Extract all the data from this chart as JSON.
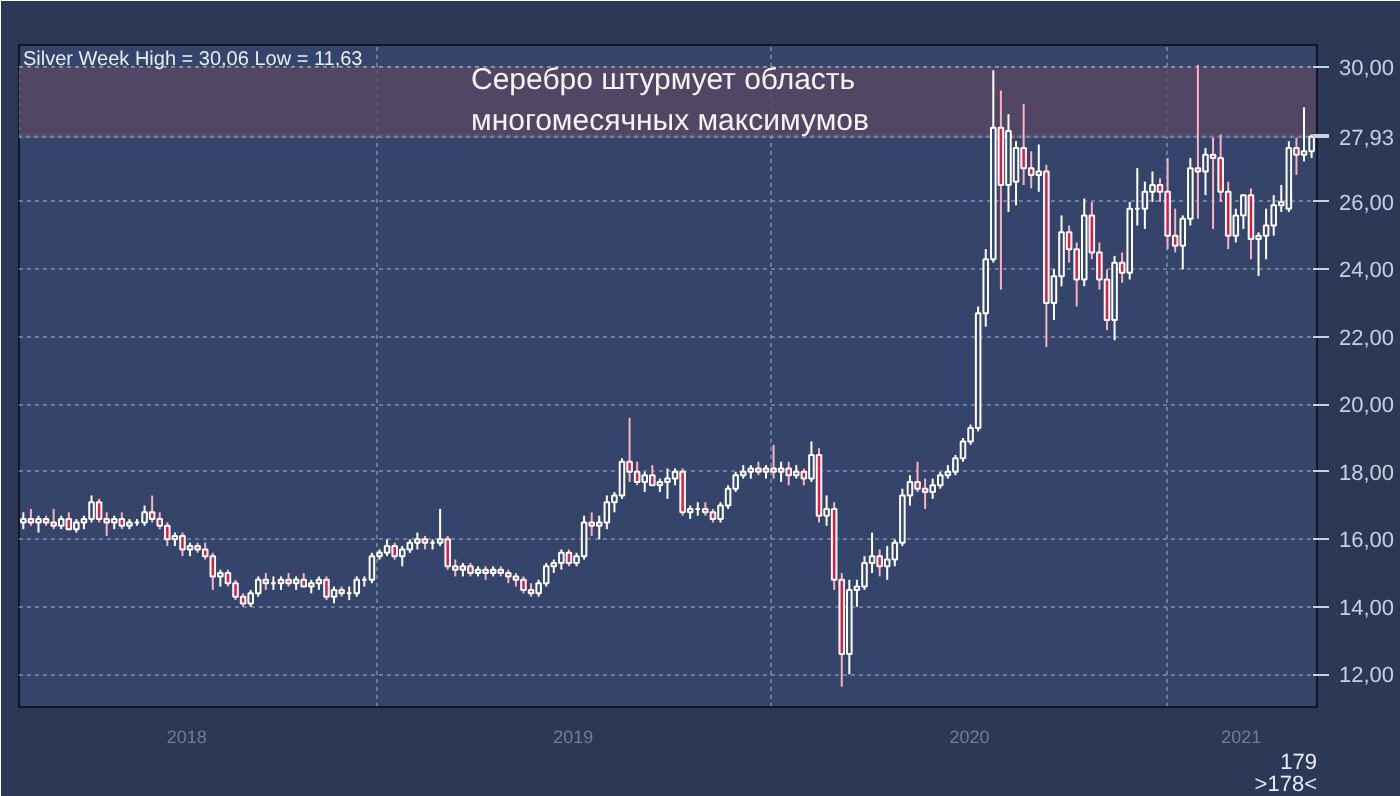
{
  "chart_data": {
    "type": "candlestick",
    "title": "Silver Week High = 30,06 Low = 11,63",
    "annotations": [
      "Серебро штурмует область\nмногомесячных максимумов",
      "179",
      ">178<"
    ],
    "x": [
      "2018-02-09",
      "2018-02-16",
      "2018-02-23",
      "2018-03-02",
      "2018-03-09",
      "2018-03-16",
      "2018-03-23",
      "2018-03-30",
      "2018-04-06",
      "2018-04-13",
      "2018-04-20",
      "2018-04-27",
      "2018-05-04",
      "2018-05-11",
      "2018-05-18",
      "2018-05-25",
      "2018-06-01",
      "2018-06-08",
      "2018-06-15",
      "2018-06-22",
      "2018-06-29",
      "2018-07-06",
      "2018-07-13",
      "2018-07-20",
      "2018-07-27",
      "2018-08-03",
      "2018-08-10",
      "2018-08-17",
      "2018-08-24",
      "2018-08-31",
      "2018-09-07",
      "2018-09-14",
      "2018-09-21",
      "2018-09-28",
      "2018-10-05",
      "2018-10-12",
      "2018-10-19",
      "2018-10-26",
      "2018-11-02",
      "2018-11-09",
      "2018-11-16",
      "2018-11-23",
      "2018-11-30",
      "2018-12-07",
      "2018-12-14",
      "2018-12-21",
      "2018-12-28",
      "2019-01-04",
      "2019-01-11",
      "2019-01-18",
      "2019-01-25",
      "2019-02-01",
      "2019-02-08",
      "2019-02-15",
      "2019-02-22",
      "2019-03-01",
      "2019-03-08",
      "2019-03-15",
      "2019-03-22",
      "2019-03-29",
      "2019-04-05",
      "2019-04-12",
      "2019-04-19",
      "2019-04-26",
      "2019-05-03",
      "2019-05-10",
      "2019-05-17",
      "2019-05-24",
      "2019-05-31",
      "2019-06-07",
      "2019-06-14",
      "2019-06-21",
      "2019-06-28",
      "2019-07-05",
      "2019-07-12",
      "2019-07-19",
      "2019-07-26",
      "2019-08-02",
      "2019-08-09",
      "2019-08-16",
      "2019-08-23",
      "2019-08-30",
      "2019-09-06",
      "2019-09-13",
      "2019-09-20",
      "2019-09-27",
      "2019-10-04",
      "2019-10-11",
      "2019-10-18",
      "2019-10-25",
      "2019-11-01",
      "2019-11-08",
      "2019-11-15",
      "2019-11-22",
      "2019-11-29",
      "2019-12-06",
      "2019-12-13",
      "2019-12-20",
      "2019-12-27",
      "2020-01-03",
      "2020-01-10",
      "2020-01-17",
      "2020-01-24",
      "2020-01-31",
      "2020-02-07",
      "2020-02-14",
      "2020-02-21",
      "2020-02-28",
      "2020-03-06",
      "2020-03-13",
      "2020-03-20",
      "2020-03-27",
      "2020-04-03",
      "2020-04-10",
      "2020-04-17",
      "2020-04-24",
      "2020-05-01",
      "2020-05-08",
      "2020-05-15",
      "2020-05-22",
      "2020-05-29",
      "2020-06-05",
      "2020-06-12",
      "2020-06-19",
      "2020-06-26",
      "2020-07-03",
      "2020-07-10",
      "2020-07-17",
      "2020-07-24",
      "2020-07-31",
      "2020-08-07",
      "2020-08-14",
      "2020-08-21",
      "2020-08-28",
      "2020-09-04",
      "2020-09-11",
      "2020-09-18",
      "2020-09-25",
      "2020-10-02",
      "2020-10-09",
      "2020-10-16",
      "2020-10-23",
      "2020-10-30",
      "2020-11-06",
      "2020-11-13",
      "2020-11-20",
      "2020-11-27",
      "2020-12-04",
      "2020-12-11",
      "2020-12-18",
      "2020-12-25",
      "2021-01-01",
      "2021-01-08",
      "2021-01-15",
      "2021-01-22",
      "2021-01-29",
      "2021-02-05",
      "2021-02-12",
      "2021-02-19",
      "2021-02-26",
      "2021-03-05",
      "2021-03-12",
      "2021-03-19",
      "2021-03-26",
      "2021-04-02",
      "2021-04-09",
      "2021-04-16",
      "2021-04-23",
      "2021-04-30",
      "2021-05-07",
      "2021-05-14"
    ],
    "ohlc": [
      [
        16.5,
        16.8,
        16.3,
        16.6
      ],
      [
        16.6,
        16.9,
        16.4,
        16.5
      ],
      [
        16.5,
        16.7,
        16.2,
        16.6
      ],
      [
        16.6,
        16.7,
        16.4,
        16.5
      ],
      [
        16.5,
        16.9,
        16.3,
        16.4
      ],
      [
        16.4,
        16.7,
        16.3,
        16.6
      ],
      [
        16.6,
        16.8,
        16.3,
        16.3
      ],
      [
        16.3,
        16.6,
        16.2,
        16.5
      ],
      [
        16.5,
        16.7,
        16.3,
        16.6
      ],
      [
        16.6,
        17.3,
        16.5,
        17.1
      ],
      [
        17.1,
        17.2,
        16.5,
        16.6
      ],
      [
        16.6,
        16.8,
        16.1,
        16.5
      ],
      [
        16.5,
        16.7,
        16.3,
        16.6
      ],
      [
        16.6,
        16.8,
        16.3,
        16.4
      ],
      [
        16.4,
        16.6,
        16.3,
        16.5
      ],
      [
        16.5,
        16.6,
        16.4,
        16.5
      ],
      [
        16.5,
        17.0,
        16.4,
        16.8
      ],
      [
        16.8,
        17.3,
        16.5,
        16.6
      ],
      [
        16.6,
        16.8,
        16.3,
        16.4
      ],
      [
        16.4,
        16.5,
        15.8,
        16.0
      ],
      [
        16.0,
        16.2,
        15.8,
        16.1
      ],
      [
        16.1,
        16.2,
        15.5,
        15.7
      ],
      [
        15.7,
        15.9,
        15.5,
        15.8
      ],
      [
        15.8,
        15.9,
        15.6,
        15.7
      ],
      [
        15.7,
        15.9,
        15.4,
        15.5
      ],
      [
        15.5,
        15.6,
        14.5,
        14.9
      ],
      [
        14.9,
        15.1,
        14.6,
        15.0
      ],
      [
        15.0,
        15.1,
        14.6,
        14.7
      ],
      [
        14.7,
        14.8,
        14.2,
        14.3
      ],
      [
        14.3,
        14.4,
        14.0,
        14.1
      ],
      [
        14.1,
        14.5,
        14.0,
        14.4
      ],
      [
        14.4,
        14.9,
        14.3,
        14.8
      ],
      [
        14.8,
        15.0,
        14.5,
        14.7
      ],
      [
        14.7,
        14.9,
        14.5,
        14.7
      ],
      [
        14.7,
        14.9,
        14.5,
        14.8
      ],
      [
        14.8,
        15.0,
        14.6,
        14.7
      ],
      [
        14.7,
        14.9,
        14.5,
        14.8
      ],
      [
        14.8,
        15.0,
        14.6,
        14.6
      ],
      [
        14.6,
        14.8,
        14.4,
        14.7
      ],
      [
        14.7,
        14.9,
        14.5,
        14.8
      ],
      [
        14.8,
        14.9,
        14.2,
        14.3
      ],
      [
        14.3,
        14.6,
        14.1,
        14.5
      ],
      [
        14.5,
        14.6,
        14.3,
        14.4
      ],
      [
        14.4,
        14.6,
        14.2,
        14.4
      ],
      [
        14.4,
        14.9,
        14.3,
        14.8
      ],
      [
        14.8,
        14.9,
        14.6,
        14.8
      ],
      [
        14.8,
        15.6,
        14.7,
        15.5
      ],
      [
        15.5,
        15.7,
        15.4,
        15.6
      ],
      [
        15.6,
        16.0,
        15.5,
        15.8
      ],
      [
        15.8,
        15.9,
        15.4,
        15.5
      ],
      [
        15.5,
        15.8,
        15.2,
        15.7
      ],
      [
        15.7,
        16.0,
        15.6,
        15.9
      ],
      [
        15.9,
        16.2,
        15.7,
        16.0
      ],
      [
        16.0,
        16.1,
        15.7,
        15.9
      ],
      [
        15.9,
        16.0,
        15.7,
        15.9
      ],
      [
        15.9,
        16.9,
        15.8,
        16.0
      ],
      [
        16.0,
        16.1,
        15.1,
        15.2
      ],
      [
        15.2,
        15.4,
        14.9,
        15.1
      ],
      [
        15.1,
        15.3,
        14.9,
        15.2
      ],
      [
        15.2,
        15.3,
        14.9,
        15.0
      ],
      [
        15.0,
        15.2,
        14.9,
        15.1
      ],
      [
        15.1,
        15.2,
        14.8,
        15.0
      ],
      [
        15.0,
        15.2,
        14.9,
        15.1
      ],
      [
        15.1,
        15.2,
        14.9,
        15.0
      ],
      [
        15.0,
        15.1,
        14.7,
        14.9
      ],
      [
        14.9,
        15.0,
        14.6,
        14.8
      ],
      [
        14.8,
        14.9,
        14.4,
        14.5
      ],
      [
        14.5,
        14.7,
        14.3,
        14.4
      ],
      [
        14.4,
        14.8,
        14.3,
        14.7
      ],
      [
        14.7,
        15.3,
        14.6,
        15.2
      ],
      [
        15.2,
        15.4,
        15.0,
        15.3
      ],
      [
        15.3,
        15.7,
        15.1,
        15.6
      ],
      [
        15.6,
        15.7,
        15.2,
        15.3
      ],
      [
        15.3,
        15.6,
        15.2,
        15.5
      ],
      [
        15.5,
        16.7,
        15.4,
        16.5
      ],
      [
        16.5,
        16.8,
        16.1,
        16.4
      ],
      [
        16.4,
        16.7,
        16.0,
        16.5
      ],
      [
        16.5,
        17.3,
        16.3,
        17.1
      ],
      [
        17.1,
        17.4,
        16.8,
        17.3
      ],
      [
        17.3,
        18.4,
        17.2,
        18.3
      ],
      [
        18.3,
        19.6,
        17.7,
        18.0
      ],
      [
        18.0,
        18.3,
        17.6,
        17.7
      ],
      [
        17.7,
        18.0,
        17.4,
        17.9
      ],
      [
        17.9,
        18.2,
        17.6,
        17.6
      ],
      [
        17.6,
        17.8,
        17.4,
        17.7
      ],
      [
        17.7,
        18.1,
        17.2,
        17.8
      ],
      [
        17.8,
        18.1,
        17.6,
        18.0
      ],
      [
        18.0,
        18.1,
        16.7,
        16.8
      ],
      [
        16.8,
        17.0,
        16.6,
        16.9
      ],
      [
        16.9,
        17.1,
        16.7,
        16.9
      ],
      [
        16.9,
        17.1,
        16.7,
        16.8
      ],
      [
        16.8,
        16.9,
        16.5,
        16.6
      ],
      [
        16.6,
        17.1,
        16.5,
        17.0
      ],
      [
        17.0,
        17.6,
        16.9,
        17.5
      ],
      [
        17.5,
        18.0,
        17.4,
        17.9
      ],
      [
        17.9,
        18.2,
        17.8,
        18.0
      ],
      [
        18.0,
        18.2,
        17.8,
        18.1
      ],
      [
        18.1,
        18.3,
        17.9,
        18.0
      ],
      [
        18.0,
        18.2,
        17.8,
        18.1
      ],
      [
        18.1,
        18.8,
        17.8,
        18.0
      ],
      [
        18.0,
        18.3,
        17.7,
        18.1
      ],
      [
        18.1,
        18.3,
        17.6,
        17.9
      ],
      [
        17.9,
        18.2,
        17.8,
        18.0
      ],
      [
        18.0,
        18.1,
        17.6,
        17.8
      ],
      [
        17.8,
        18.9,
        17.7,
        18.5
      ],
      [
        18.5,
        18.7,
        16.5,
        16.7
      ],
      [
        16.7,
        17.3,
        16.4,
        16.9
      ],
      [
        16.9,
        17.1,
        14.5,
        14.8
      ],
      [
        14.8,
        15.0,
        11.63,
        12.6
      ],
      [
        12.6,
        14.8,
        12.0,
        14.5
      ],
      [
        14.5,
        14.8,
        14.0,
        14.6
      ],
      [
        14.6,
        15.5,
        14.5,
        15.3
      ],
      [
        15.3,
        16.2,
        15.0,
        15.5
      ],
      [
        15.5,
        15.7,
        14.9,
        15.2
      ],
      [
        15.2,
        15.8,
        14.8,
        15.4
      ],
      [
        15.4,
        16.0,
        15.2,
        15.9
      ],
      [
        15.9,
        17.5,
        15.8,
        17.3
      ],
      [
        17.3,
        17.9,
        17.0,
        17.7
      ],
      [
        17.7,
        18.3,
        17.4,
        17.5
      ],
      [
        17.5,
        17.8,
        16.9,
        17.4
      ],
      [
        17.4,
        17.8,
        17.2,
        17.6
      ],
      [
        17.6,
        18.0,
        17.5,
        17.9
      ],
      [
        17.9,
        18.2,
        17.8,
        18.0
      ],
      [
        18.0,
        18.5,
        17.9,
        18.4
      ],
      [
        18.4,
        19.0,
        18.3,
        18.9
      ],
      [
        18.9,
        19.4,
        18.8,
        19.3
      ],
      [
        19.3,
        22.9,
        19.2,
        22.7
      ],
      [
        22.7,
        24.6,
        22.3,
        24.3
      ],
      [
        24.3,
        29.9,
        24.2,
        28.2
      ],
      [
        28.2,
        29.3,
        23.4,
        26.5
      ],
      [
        26.5,
        28.6,
        25.7,
        28.1
      ],
      [
        26.6,
        27.8,
        25.9,
        27.6
      ],
      [
        27.6,
        28.9,
        26.5,
        27.0
      ],
      [
        27.0,
        27.5,
        26.4,
        26.8
      ],
      [
        26.8,
        27.7,
        26.3,
        26.9
      ],
      [
        26.9,
        27.1,
        21.7,
        23.0
      ],
      [
        23.0,
        24.0,
        22.5,
        23.8
      ],
      [
        23.8,
        25.6,
        23.5,
        25.1
      ],
      [
        25.1,
        25.3,
        24.2,
        24.6
      ],
      [
        24.6,
        24.8,
        22.9,
        23.7
      ],
      [
        23.7,
        26.1,
        23.5,
        25.6
      ],
      [
        25.6,
        26.0,
        24.3,
        24.5
      ],
      [
        24.5,
        24.8,
        23.4,
        23.7
      ],
      [
        23.7,
        24.0,
        22.2,
        22.5
      ],
      [
        22.5,
        24.4,
        21.9,
        24.2
      ],
      [
        24.2,
        24.5,
        23.6,
        23.9
      ],
      [
        23.9,
        26.0,
        23.7,
        25.8
      ],
      [
        25.8,
        27.0,
        25.3,
        25.8
      ],
      [
        25.8,
        26.6,
        25.2,
        26.3
      ],
      [
        26.3,
        26.9,
        26.0,
        26.5
      ],
      [
        26.5,
        26.7,
        26.0,
        26.3
      ],
      [
        26.3,
        27.3,
        24.6,
        25.0
      ],
      [
        25.0,
        25.8,
        24.5,
        24.7
      ],
      [
        24.7,
        25.6,
        24.0,
        25.5
      ],
      [
        25.5,
        27.3,
        25.3,
        27.0
      ],
      [
        27.0,
        30.06,
        25.5,
        26.9
      ],
      [
        26.9,
        27.6,
        26.2,
        27.4
      ],
      [
        27.4,
        27.9,
        25.2,
        27.3
      ],
      [
        27.3,
        28.0,
        26.0,
        26.3
      ],
      [
        26.3,
        26.6,
        24.6,
        25.0
      ],
      [
        25.0,
        25.8,
        24.8,
        25.6
      ],
      [
        25.6,
        26.2,
        25.2,
        26.2
      ],
      [
        26.2,
        26.4,
        24.3,
        24.9
      ],
      [
        24.9,
        25.1,
        23.8,
        25.0
      ],
      [
        25.0,
        25.8,
        24.3,
        25.3
      ],
      [
        25.3,
        26.2,
        25.0,
        25.9
      ],
      [
        25.9,
        26.5,
        25.7,
        26.0
      ],
      [
        25.8,
        27.8,
        25.7,
        27.6
      ],
      [
        27.6,
        27.9,
        26.8,
        27.4
      ],
      [
        27.4,
        28.8,
        27.2,
        27.5
      ],
      [
        27.5,
        28.0,
        27.3,
        27.93
      ]
    ],
    "xlim": [
      "2018-02-05",
      "2021-05-19"
    ],
    "xticks": [
      {
        "value": "2018-07-10",
        "label": "2018"
      },
      {
        "value": "2019-01-01",
        "label": null
      },
      {
        "value": "2019-07-02",
        "label": "2019"
      },
      {
        "value": "2020-01-01",
        "label": null
      },
      {
        "value": "2020-07-02",
        "label": "2020"
      },
      {
        "value": "2021-01-01",
        "label": null
      },
      {
        "value": "2021-03-10",
        "label": "2021"
      }
    ],
    "ylim": [
      11.03,
      30.65
    ],
    "yticks": [
      {
        "value": 12,
        "label": "12,00"
      },
      {
        "value": 14,
        "label": "14,00"
      },
      {
        "value": 16,
        "label": "16,00"
      },
      {
        "value": 18,
        "label": "18,00"
      },
      {
        "value": 20,
        "label": "20,00"
      },
      {
        "value": 22,
        "label": "22,00"
      },
      {
        "value": 24,
        "label": "24,00"
      },
      {
        "value": 26,
        "label": "26,00"
      },
      {
        "value": 27.93,
        "label": "27,93"
      },
      {
        "value": 28,
        "label": null
      },
      {
        "value": 30,
        "label": "30,00"
      }
    ],
    "bands": [
      {
        "axis": "y",
        "from": 27.93,
        "to": 30.0,
        "color": "#5b4763"
      }
    ],
    "grid": true
  }
}
